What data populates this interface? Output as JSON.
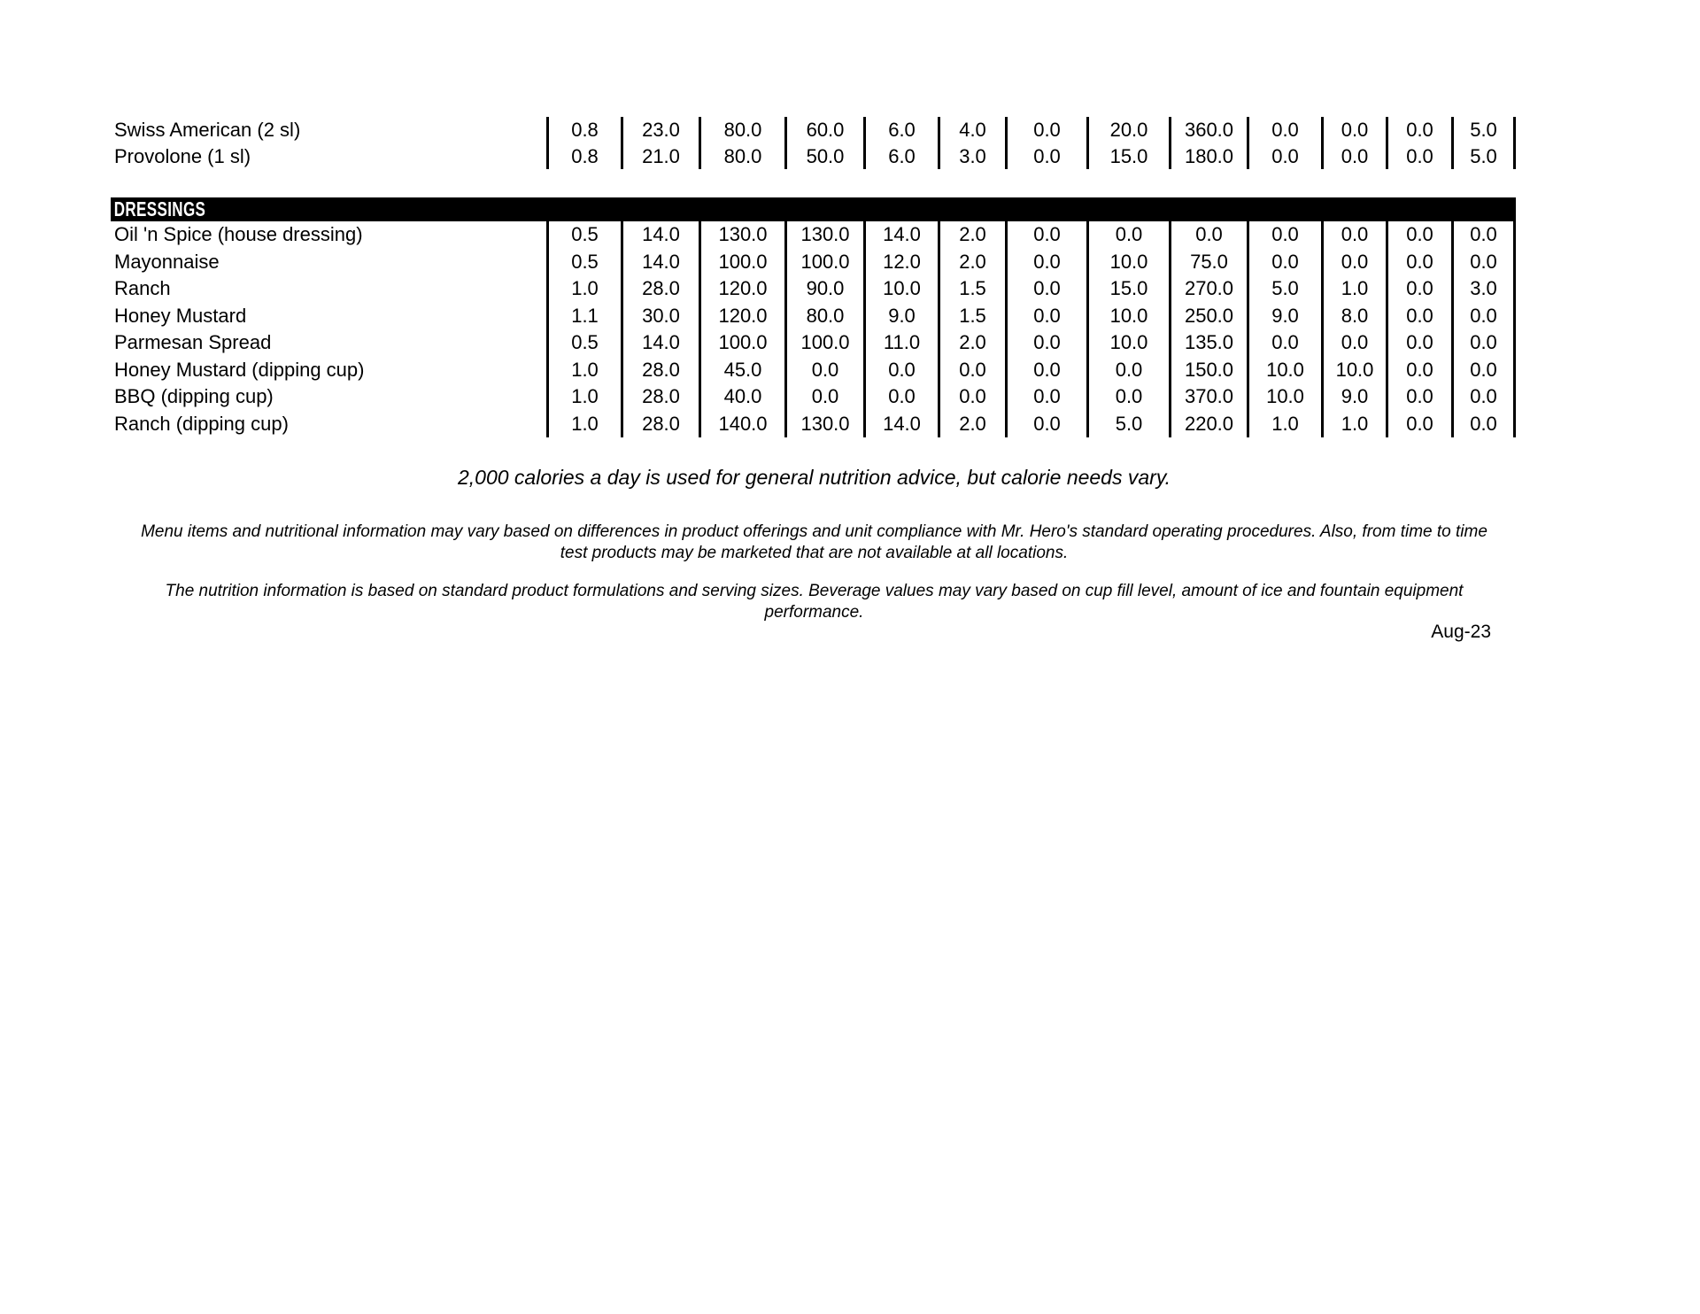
{
  "sections": {
    "cheese": {
      "rows": [
        {
          "label": "Swiss American (2 sl)",
          "values": [
            "0.8",
            "23.0",
            "80.0",
            "60.0",
            "6.0",
            "4.0",
            "0.0",
            "20.0",
            "360.0",
            "0.0",
            "0.0",
            "0.0",
            "5.0"
          ]
        },
        {
          "label": "Provolone (1 sl)",
          "values": [
            "0.8",
            "21.0",
            "80.0",
            "50.0",
            "6.0",
            "3.0",
            "0.0",
            "15.0",
            "180.0",
            "0.0",
            "0.0",
            "0.0",
            "5.0"
          ]
        }
      ]
    },
    "dressings": {
      "header": "DRESSINGS",
      "rows": [
        {
          "label": "Oil 'n Spice (house dressing)",
          "values": [
            "0.5",
            "14.0",
            "130.0",
            "130.0",
            "14.0",
            "2.0",
            "0.0",
            "0.0",
            "0.0",
            "0.0",
            "0.0",
            "0.0",
            "0.0"
          ]
        },
        {
          "label": "Mayonnaise",
          "values": [
            "0.5",
            "14.0",
            "100.0",
            "100.0",
            "12.0",
            "2.0",
            "0.0",
            "10.0",
            "75.0",
            "0.0",
            "0.0",
            "0.0",
            "0.0"
          ]
        },
        {
          "label": "Ranch",
          "values": [
            "1.0",
            "28.0",
            "120.0",
            "90.0",
            "10.0",
            "1.5",
            "0.0",
            "15.0",
            "270.0",
            "5.0",
            "1.0",
            "0.0",
            "3.0"
          ]
        },
        {
          "label": "Honey Mustard",
          "values": [
            "1.1",
            "30.0",
            "120.0",
            "80.0",
            "9.0",
            "1.5",
            "0.0",
            "10.0",
            "250.0",
            "9.0",
            "8.0",
            "0.0",
            "0.0"
          ]
        },
        {
          "label": "Parmesan Spread",
          "values": [
            "0.5",
            "14.0",
            "100.0",
            "100.0",
            "11.0",
            "2.0",
            "0.0",
            "10.0",
            "135.0",
            "0.0",
            "0.0",
            "0.0",
            "0.0"
          ]
        },
        {
          "label": "Honey Mustard (dipping cup)",
          "values": [
            "1.0",
            "28.0",
            "45.0",
            "0.0",
            "0.0",
            "0.0",
            "0.0",
            "0.0",
            "150.0",
            "10.0",
            "10.0",
            "0.0",
            "0.0"
          ]
        },
        {
          "label": "BBQ (dipping cup)",
          "values": [
            "1.0",
            "28.0",
            "40.0",
            "0.0",
            "0.0",
            "0.0",
            "0.0",
            "0.0",
            "370.0",
            "10.0",
            "9.0",
            "0.0",
            "0.0"
          ]
        },
        {
          "label": "Ranch (dipping cup)",
          "values": [
            "1.0",
            "28.0",
            "140.0",
            "130.0",
            "14.0",
            "2.0",
            "0.0",
            "5.0",
            "220.0",
            "1.0",
            "1.0",
            "0.0",
            "0.0"
          ]
        }
      ]
    }
  },
  "footnotes": {
    "calorie_note": "2,000 calories a day is used for general nutrition advice, but calorie needs vary.",
    "disclaimer_1_lines": [
      "Menu items and nutritional information may vary based on differences in product offerings and unit compliance with Mr. Hero's standard operating procedures. Also, from time to time",
      "test products may be marketed that are not available at all locations."
    ],
    "disclaimer_2_lines": [
      "The nutrition information is based on standard product formulations and serving sizes. Beverage values may vary based on cup fill level, amount of ice and fountain equipment",
      "performance."
    ],
    "date": "Aug-23"
  },
  "colors": {
    "page_bg": "#ffffff",
    "text": "#000000",
    "divider": "#000000",
    "section_header_bg": "#000000",
    "section_header_text": "#ffffff"
  }
}
